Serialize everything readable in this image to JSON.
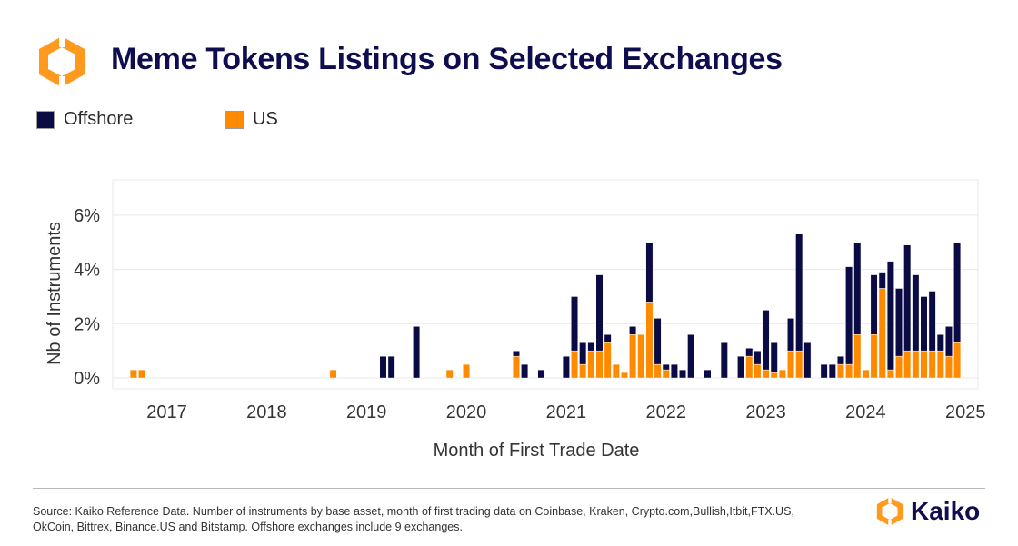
{
  "header": {
    "title": "Meme Tokens Listings on Selected Exchanges",
    "logo_icon": "kaiko-logo-icon"
  },
  "colors": {
    "offshore": "#0a0a45",
    "us": "#ff8a00",
    "grid": "#e9e9e9",
    "axis_text": "#333333",
    "brand_orange": "#ff9a1f"
  },
  "chart_data": {
    "type": "bar",
    "stacked": true,
    "title": "Meme Tokens Listings on Selected Exchanges",
    "xlabel": "Month of First Trade Date",
    "ylabel": "Nb of Instruments",
    "ylim": [
      -0.4,
      7.3
    ],
    "yticks": [
      0,
      2,
      4,
      6
    ],
    "ytick_labels": [
      "0%",
      "2%",
      "4%",
      "6%"
    ],
    "xticks": [
      "2017",
      "2018",
      "2019",
      "2020",
      "2021",
      "2022",
      "2023",
      "2024",
      "2025"
    ],
    "xlim_months": [
      "2016-07",
      "2025-03"
    ],
    "grid": true,
    "legend_position": "top-left",
    "months": [
      "2016-09",
      "2016-10",
      "2018-09",
      "2019-03",
      "2019-04",
      "2019-07",
      "2019-11",
      "2020-01",
      "2020-07",
      "2020-08",
      "2020-10",
      "2021-01",
      "2021-02",
      "2021-03",
      "2021-04",
      "2021-05",
      "2021-06",
      "2021-07",
      "2021-08",
      "2021-09",
      "2021-10",
      "2021-11",
      "2021-12",
      "2022-01",
      "2022-02",
      "2022-03",
      "2022-04",
      "2022-06",
      "2022-08",
      "2022-10",
      "2022-11",
      "2022-12",
      "2023-01",
      "2023-02",
      "2023-03",
      "2023-04",
      "2023-05",
      "2023-06",
      "2023-08",
      "2023-09",
      "2023-10",
      "2023-11",
      "2023-12",
      "2024-01",
      "2024-02",
      "2024-03",
      "2024-04",
      "2024-05",
      "2024-06",
      "2024-07",
      "2024-08",
      "2024-09",
      "2024-10",
      "2024-11",
      "2024-12"
    ],
    "series": [
      {
        "name": "Offshore",
        "values": [
          0,
          0,
          0,
          0.8,
          0.8,
          1.9,
          0,
          0,
          0.2,
          0.5,
          0.3,
          0.8,
          2.0,
          0.8,
          0.3,
          2.8,
          0.3,
          0,
          0,
          0.3,
          0,
          2.2,
          1.7,
          0.2,
          0.5,
          0.3,
          1.6,
          0.3,
          1.3,
          0.8,
          0.3,
          0.5,
          2.2,
          1.1,
          0,
          1.2,
          4.3,
          1.3,
          0.5,
          0.5,
          0.3,
          3.6,
          3.4,
          0,
          2.2,
          0.6,
          4.0,
          2.5,
          3.9,
          2.8,
          2.0,
          2.2,
          0.6,
          1.1,
          3.7
        ]
      },
      {
        "name": "US",
        "values": [
          0.3,
          0.3,
          0.3,
          0,
          0,
          0,
          0.3,
          0.5,
          0.8,
          0,
          0,
          0,
          1.0,
          0.5,
          1.0,
          1.0,
          1.3,
          0.5,
          0.2,
          1.6,
          1.6,
          2.8,
          0.5,
          0.3,
          0,
          0,
          0,
          0,
          0,
          0,
          0.8,
          0.5,
          0.3,
          0.2,
          0.3,
          1.0,
          1.0,
          0,
          0,
          0,
          0.5,
          0.5,
          1.6,
          0.3,
          1.6,
          3.3,
          0.3,
          0.8,
          1.0,
          1.0,
          1.0,
          1.0,
          1.0,
          0.8,
          1.3
        ]
      }
    ]
  },
  "footer": {
    "source_text": "Source: Kaiko Reference Data. Number of instruments by base asset, month of first trading data on Coinbase, Kraken, Crypto.com,Bullish,Itbit,FTX.US, OkCoin, Bittrex, Binance.US and Bitstamp. Offshore exchanges include 9 exchanges.",
    "brand_name": "Kaiko"
  }
}
